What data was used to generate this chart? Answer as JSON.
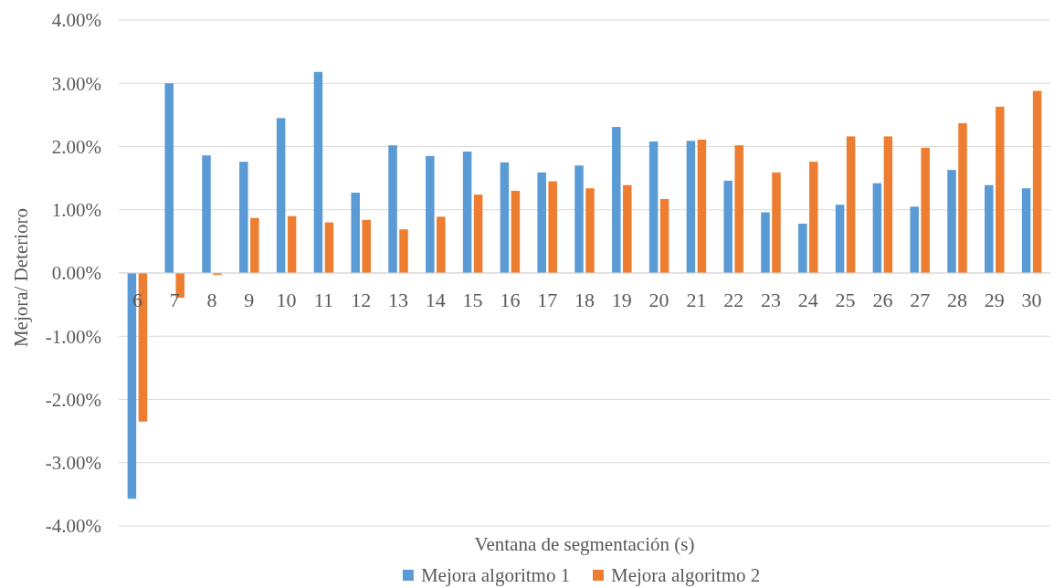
{
  "chart_data": {
    "type": "bar",
    "xlabel": "Ventana de segmentación (s)",
    "ylabel": "Mejora/ Deterioro",
    "categories": [
      "6",
      "7",
      "8",
      "9",
      "10",
      "11",
      "12",
      "13",
      "14",
      "15",
      "16",
      "17",
      "18",
      "19",
      "20",
      "21",
      "22",
      "23",
      "24",
      "25",
      "26",
      "27",
      "28",
      "29",
      "30"
    ],
    "series": [
      {
        "name": "Mejora algoritmo 1",
        "color": "#5b9bd5",
        "values": [
          -3.57,
          3.0,
          1.86,
          1.76,
          2.45,
          3.18,
          1.27,
          2.02,
          1.85,
          1.92,
          1.75,
          1.59,
          1.7,
          2.31,
          2.08,
          2.09,
          1.46,
          0.96,
          0.78,
          1.08,
          1.42,
          1.05,
          1.63,
          1.39,
          1.34
        ]
      },
      {
        "name": "Mejora algoritmo 2",
        "color": "#ed7d31",
        "values": [
          -2.35,
          -0.39,
          -0.03,
          0.87,
          0.9,
          0.8,
          0.84,
          0.69,
          0.89,
          1.24,
          1.3,
          1.45,
          1.34,
          1.39,
          1.17,
          2.11,
          2.02,
          1.59,
          1.76,
          2.16,
          2.16,
          1.98,
          2.37,
          2.63,
          2.88
        ]
      }
    ],
    "ylim": [
      -4,
      4
    ],
    "yticks": [
      {
        "value": -4,
        "label": "-4.00%"
      },
      {
        "value": -3,
        "label": "-3.00%"
      },
      {
        "value": -2,
        "label": "-2.00%"
      },
      {
        "value": -1,
        "label": "-1.00%"
      },
      {
        "value": 0,
        "label": "0.00%"
      },
      {
        "value": 1,
        "label": "1.00%"
      },
      {
        "value": 2,
        "label": "2.00%"
      },
      {
        "value": 3,
        "label": "3.00%"
      },
      {
        "value": 4,
        "label": "4.00%"
      }
    ],
    "grid": "y",
    "legend": "bottom"
  }
}
